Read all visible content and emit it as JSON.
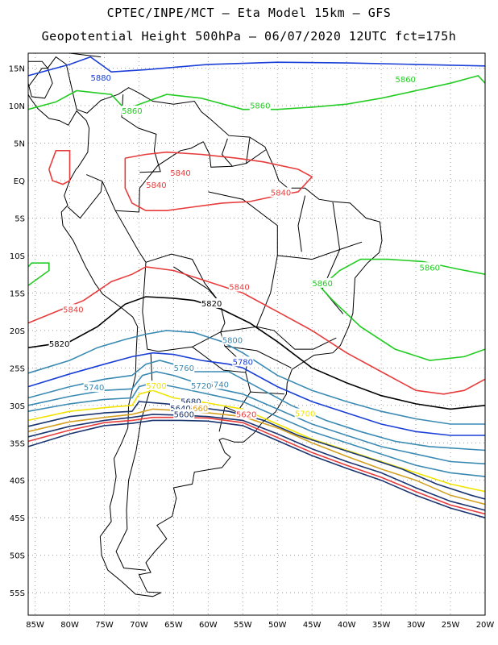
{
  "header": {
    "title": "CPTEC/INPE/MCT –  Eta Model 15km – GFS",
    "subtitle": "Geopotential Height 500hPa – 06/07/2020 12UTC fct=175h"
  },
  "map": {
    "lat_labels": [
      "15N",
      "10N",
      "5N",
      "EQ",
      "5S",
      "10S",
      "15S",
      "20S",
      "25S",
      "30S",
      "35S",
      "40S",
      "45S",
      "50S",
      "55S"
    ],
    "lon_labels": [
      "85W",
      "80W",
      "75W",
      "70W",
      "65W",
      "60W",
      "55W",
      "50W",
      "45W",
      "40W",
      "35W",
      "30W",
      "25W",
      "20W"
    ],
    "lat_range": [
      17,
      -58
    ],
    "lon_range": [
      -86,
      -20
    ]
  },
  "contours": [
    {
      "value": "5880",
      "color": "#1a3fd6",
      "label_pos": [
        -75.5,
        13.7
      ]
    },
    {
      "value": "5860",
      "color": "#22cc22",
      "label_pos": [
        -71,
        9.3
      ]
    },
    {
      "value": "5860",
      "color": "#22cc22",
      "label_pos": [
        -52.5,
        10.0
      ]
    },
    {
      "value": "5860",
      "color": "#22cc22",
      "label_pos": [
        -31.5,
        13.5
      ]
    },
    {
      "value": "5860",
      "color": "#22cc22",
      "label_pos": [
        -43.5,
        -13.7
      ]
    },
    {
      "value": "5860",
      "color": "#22cc22",
      "label_pos": [
        -28,
        -11.6
      ]
    },
    {
      "value": "5840",
      "color": "#e83c3c",
      "label_pos": [
        -64,
        1.0
      ]
    },
    {
      "value": "5840",
      "color": "#e83c3c",
      "label_pos": [
        -67.5,
        -0.6
      ]
    },
    {
      "value": "5840",
      "color": "#e83c3c",
      "label_pos": [
        -49.5,
        -1.6
      ]
    },
    {
      "value": "5840",
      "color": "#e83c3c",
      "label_pos": [
        -79.5,
        -17.2
      ]
    },
    {
      "value": "5840",
      "color": "#e83c3c",
      "label_pos": [
        -55.5,
        -14.2
      ]
    },
    {
      "value": "5820",
      "color": "#000000",
      "label_pos": [
        -81.5,
        -21.8
      ]
    },
    {
      "value": "5820",
      "color": "#000000",
      "label_pos": [
        -59.5,
        -16.4
      ]
    },
    {
      "value": "5800",
      "color": "#3a8ab3",
      "label_pos": [
        -56.5,
        -21.3
      ]
    },
    {
      "value": "5780",
      "color": "#1a3fd6",
      "label_pos": [
        -55,
        -24.2
      ]
    },
    {
      "value": "5760",
      "color": "#3a8ab3",
      "label_pos": [
        -63.5,
        -25.0
      ]
    },
    {
      "value": "5740",
      "color": "#3a8ab3",
      "label_pos": [
        -76.5,
        -27.6
      ]
    },
    {
      "value": "5740",
      "color": "#3a8ab3",
      "label_pos": [
        -58.5,
        -27.2
      ]
    },
    {
      "value": "5720",
      "color": "#3a8ab3",
      "label_pos": [
        -61,
        -27.4
      ]
    },
    {
      "value": "5700",
      "color": "#f0e400",
      "label_pos": [
        -67.5,
        -27.4
      ]
    },
    {
      "value": "5700",
      "color": "#f0e400",
      "label_pos": [
        -46,
        -31.1
      ]
    },
    {
      "value": "5680",
      "color": "#1a3570",
      "label_pos": [
        -62.5,
        -29.5
      ]
    },
    {
      "value": "5660",
      "color": "#d4a020",
      "label_pos": [
        -61.5,
        -30.4
      ]
    },
    {
      "value": "5640",
      "color": "#1a3570",
      "label_pos": [
        -64,
        -30.4
      ]
    },
    {
      "value": "5620",
      "color": "#e83c3c",
      "label_pos": [
        -54.5,
        -31.2
      ]
    },
    {
      "value": "5600",
      "color": "#1a3570",
      "label_pos": [
        -63.5,
        -31.2
      ]
    }
  ]
}
